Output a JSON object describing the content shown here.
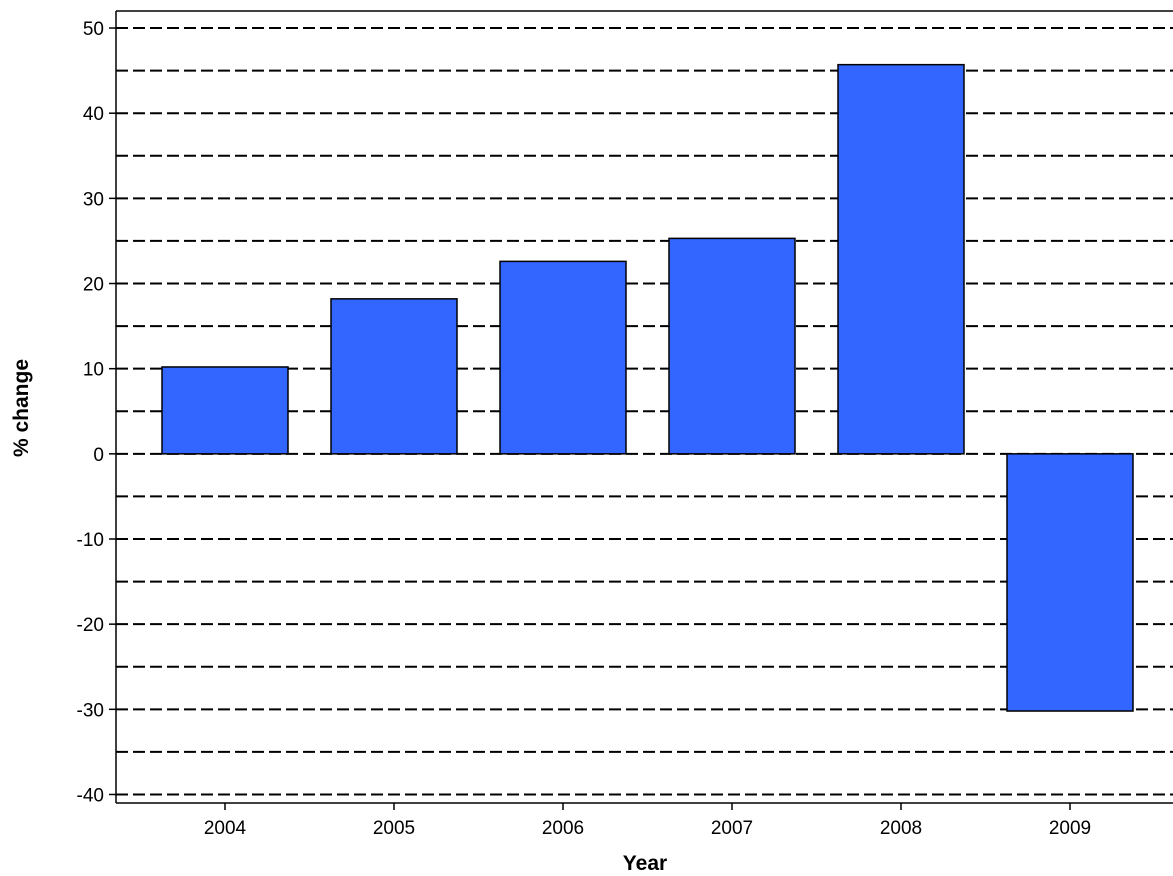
{
  "chart_data": {
    "type": "bar",
    "xlabel": "Year",
    "ylabel": "% change",
    "categories": [
      "2004",
      "2005",
      "2006",
      "2007",
      "2008",
      "2009"
    ],
    "values": [
      10.2,
      18.2,
      22.6,
      25.3,
      45.7,
      -30.2
    ],
    "ylim": [
      -41,
      52
    ],
    "yticks": [
      50,
      40,
      30,
      20,
      10,
      0,
      -10,
      -20,
      -30,
      -40
    ],
    "gridlines_dashed": [
      50,
      45,
      40,
      35,
      30,
      25,
      20,
      15,
      10,
      5,
      0,
      -5,
      -10,
      -15,
      -20,
      -25,
      -30,
      -35,
      -40
    ],
    "grid": true,
    "bar_color": "#3366ff",
    "bar_outline_color": "#000000"
  }
}
